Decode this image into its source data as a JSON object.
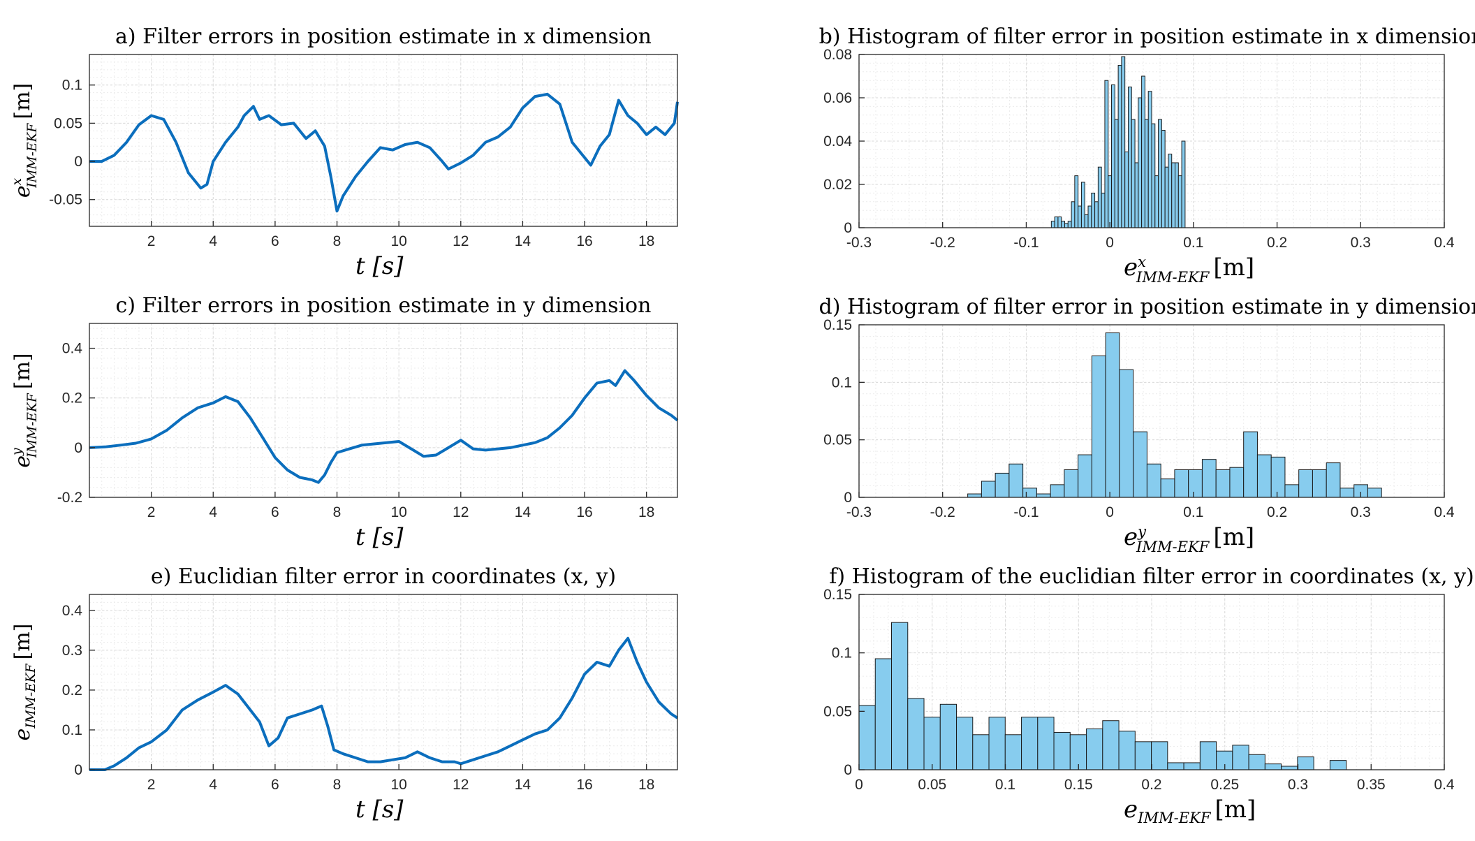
{
  "chart_data": [
    {
      "id": "a",
      "type": "line",
      "title": "a) Filter errors in position estimate in x dimension",
      "xlabel": "t [s]",
      "ylabel": "e^x_{IMM-EKF} [m]",
      "xlim": [
        0,
        19
      ],
      "ylim": [
        -0.085,
        0.14
      ],
      "xticks": [
        2,
        4,
        6,
        8,
        10,
        12,
        14,
        16,
        18
      ],
      "xtick_labels": [
        "2",
        "4",
        "6",
        "8",
        "10",
        "12",
        "14",
        "16",
        "18"
      ],
      "yticks": [
        -0.05,
        0,
        0.05,
        0.1
      ],
      "ytick_labels": [
        "-0.05",
        "0",
        "0.05",
        "0.1"
      ],
      "grid": true,
      "x": [
        0,
        0.4,
        0.8,
        1.2,
        1.6,
        2.0,
        2.4,
        2.8,
        3.2,
        3.6,
        3.8,
        4.0,
        4.4,
        4.8,
        5.0,
        5.3,
        5.5,
        5.8,
        6.2,
        6.6,
        7.0,
        7.3,
        7.6,
        7.8,
        8.0,
        8.2,
        8.6,
        9.0,
        9.4,
        9.8,
        10.2,
        10.6,
        11.0,
        11.4,
        11.6,
        12.0,
        12.4,
        12.8,
        13.2,
        13.6,
        14.0,
        14.4,
        14.8,
        15.2,
        15.6,
        16.0,
        16.2,
        16.5,
        16.8,
        17.1,
        17.4,
        17.7,
        18.0,
        18.3,
        18.6,
        18.9,
        19.0
      ],
      "y": [
        0,
        0,
        0.008,
        0.025,
        0.048,
        0.06,
        0.055,
        0.025,
        -0.015,
        -0.035,
        -0.03,
        0.0,
        0.025,
        0.045,
        0.06,
        0.072,
        0.055,
        0.06,
        0.048,
        0.05,
        0.03,
        0.04,
        0.02,
        -0.02,
        -0.065,
        -0.045,
        -0.02,
        0.0,
        0.018,
        0.015,
        0.022,
        0.025,
        0.018,
        0.0,
        -0.01,
        -0.002,
        0.008,
        0.025,
        0.032,
        0.045,
        0.07,
        0.085,
        0.088,
        0.075,
        0.025,
        0.005,
        -0.005,
        0.02,
        0.035,
        0.08,
        0.06,
        0.05,
        0.035,
        0.045,
        0.035,
        0.05,
        0.078
      ]
    },
    {
      "id": "b",
      "type": "bar",
      "title": "b) Histogram of filter error in position estimate in x dimension",
      "xlabel": "e^x_{IMM-EKF} [m]",
      "xlim": [
        -0.3,
        0.4
      ],
      "ylim": [
        0,
        0.08
      ],
      "xticks": [
        -0.3,
        -0.2,
        -0.1,
        0,
        0.1,
        0.2,
        0.3,
        0.4
      ],
      "xtick_labels": [
        "-0.3",
        "-0.2",
        "-0.1",
        "0",
        "0.1",
        "0.2",
        "0.3",
        "0.4"
      ],
      "yticks": [
        0,
        0.02,
        0.04,
        0.06,
        0.08
      ],
      "ytick_labels": [
        "0",
        "0.02",
        "0.04",
        "0.06",
        "0.08"
      ],
      "grid": true,
      "bin_start": -0.07,
      "bin_width": 0.004,
      "values": [
        0.003,
        0.005,
        0.005,
        0.003,
        0.002,
        0.003,
        0.012,
        0.024,
        0.01,
        0.021,
        0.006,
        0.01,
        0.016,
        0.012,
        0.028,
        0.016,
        0.068,
        0.024,
        0.066,
        0.05,
        0.075,
        0.079,
        0.035,
        0.065,
        0.05,
        0.03,
        0.06,
        0.07,
        0.05,
        0.063,
        0.048,
        0.024,
        0.05,
        0.045,
        0.028,
        0.034,
        0.03,
        0.03,
        0.024,
        0.04
      ]
    },
    {
      "id": "c",
      "type": "line",
      "title": "c) Filter errors in position estimate in y dimension",
      "xlabel": "t [s]",
      "ylabel": "e^y_{IMM-EKF} [m]",
      "xlim": [
        0,
        19
      ],
      "ylim": [
        -0.2,
        0.5
      ],
      "xticks": [
        2,
        4,
        6,
        8,
        10,
        12,
        14,
        16,
        18
      ],
      "xtick_labels": [
        "2",
        "4",
        "6",
        "8",
        "10",
        "12",
        "14",
        "16",
        "18"
      ],
      "yticks": [
        -0.2,
        0,
        0.2,
        0.4
      ],
      "ytick_labels": [
        "-0.2",
        "0",
        "0.2",
        "0.4"
      ],
      "grid": true,
      "x": [
        0,
        0.5,
        1.0,
        1.5,
        2.0,
        2.5,
        3.0,
        3.5,
        4.0,
        4.4,
        4.8,
        5.2,
        5.6,
        6.0,
        6.4,
        6.8,
        7.2,
        7.4,
        7.6,
        7.8,
        8.0,
        8.4,
        8.8,
        9.2,
        9.6,
        10.0,
        10.4,
        10.8,
        11.2,
        11.6,
        12.0,
        12.4,
        12.8,
        13.2,
        13.6,
        14.0,
        14.4,
        14.8,
        15.2,
        15.6,
        16.0,
        16.4,
        16.8,
        17.0,
        17.3,
        17.6,
        18.0,
        18.4,
        18.8,
        19.0
      ],
      "y": [
        0,
        0.003,
        0.01,
        0.018,
        0.035,
        0.07,
        0.12,
        0.16,
        0.18,
        0.205,
        0.185,
        0.12,
        0.04,
        -0.04,
        -0.09,
        -0.12,
        -0.13,
        -0.14,
        -0.11,
        -0.06,
        -0.02,
        -0.005,
        0.01,
        0.015,
        0.02,
        0.025,
        -0.005,
        -0.035,
        -0.03,
        0.0,
        0.03,
        -0.005,
        -0.01,
        -0.005,
        0.0,
        0.01,
        0.02,
        0.04,
        0.08,
        0.13,
        0.2,
        0.26,
        0.27,
        0.25,
        0.31,
        0.27,
        0.21,
        0.16,
        0.13,
        0.11
      ]
    },
    {
      "id": "d",
      "type": "bar",
      "title": "d) Histogram of filter error in position estimate in y dimension",
      "xlabel": "e^y_{IMM-EKF} [m]",
      "xlim": [
        -0.3,
        0.4
      ],
      "ylim": [
        0,
        0.15
      ],
      "xticks": [
        -0.3,
        -0.2,
        -0.1,
        0,
        0.1,
        0.2,
        0.3,
        0.4
      ],
      "xtick_labels": [
        "-0.3",
        "-0.2",
        "-0.1",
        "0",
        "0.1",
        "0.2",
        "0.3",
        "0.4"
      ],
      "yticks": [
        0,
        0.05,
        0.1,
        0.15
      ],
      "ytick_labels": [
        "0",
        "0.05",
        "0.1",
        "0.15"
      ],
      "grid": true,
      "bin_start": -0.17,
      "bin_width": 0.0165,
      "values": [
        0.003,
        0.014,
        0.021,
        0.029,
        0.008,
        0.003,
        0.011,
        0.024,
        0.037,
        0.123,
        0.143,
        0.111,
        0.057,
        0.029,
        0.016,
        0.024,
        0.024,
        0.033,
        0.024,
        0.026,
        0.057,
        0.037,
        0.035,
        0.011,
        0.024,
        0.024,
        0.03,
        0.008,
        0.011,
        0.008
      ]
    },
    {
      "id": "e",
      "type": "line",
      "title": "e) Euclidian filter error in coordinates (x, y)",
      "xlabel": "t [s]",
      "ylabel": "e_{IMM-EKF} [m]",
      "xlim": [
        0,
        19
      ],
      "ylim": [
        0,
        0.44
      ],
      "xticks": [
        2,
        4,
        6,
        8,
        10,
        12,
        14,
        16,
        18
      ],
      "xtick_labels": [
        "2",
        "4",
        "6",
        "8",
        "10",
        "12",
        "14",
        "16",
        "18"
      ],
      "yticks": [
        0,
        0.1,
        0.2,
        0.3,
        0.4
      ],
      "ytick_labels": [
        "0",
        "0.1",
        "0.2",
        "0.3",
        "0.4"
      ],
      "grid": true,
      "x": [
        0,
        0.5,
        0.8,
        1.2,
        1.6,
        2.0,
        2.5,
        3.0,
        3.5,
        4.0,
        4.4,
        4.8,
        5.2,
        5.5,
        5.8,
        6.1,
        6.4,
        6.8,
        7.2,
        7.5,
        7.7,
        7.9,
        8.2,
        8.6,
        9.0,
        9.4,
        9.8,
        10.2,
        10.6,
        11.0,
        11.4,
        11.8,
        12.0,
        12.4,
        12.8,
        13.2,
        13.6,
        14.0,
        14.4,
        14.8,
        15.2,
        15.6,
        16.0,
        16.4,
        16.8,
        17.1,
        17.4,
        17.7,
        18.0,
        18.4,
        18.8,
        19.0
      ],
      "y": [
        0,
        0.0,
        0.01,
        0.03,
        0.055,
        0.07,
        0.1,
        0.15,
        0.175,
        0.195,
        0.212,
        0.19,
        0.15,
        0.12,
        0.06,
        0.08,
        0.13,
        0.14,
        0.15,
        0.16,
        0.11,
        0.05,
        0.04,
        0.03,
        0.02,
        0.02,
        0.025,
        0.03,
        0.045,
        0.03,
        0.02,
        0.02,
        0.015,
        0.025,
        0.035,
        0.045,
        0.06,
        0.075,
        0.09,
        0.1,
        0.13,
        0.18,
        0.24,
        0.27,
        0.26,
        0.3,
        0.33,
        0.27,
        0.22,
        0.17,
        0.14,
        0.13
      ]
    },
    {
      "id": "f",
      "type": "bar",
      "title": "f) Histogram of the euclidian filter error in coordinates (x, y)",
      "xlabel": "e_{IMM-EKF} [m]",
      "xlim": [
        0,
        0.4
      ],
      "ylim": [
        0,
        0.15
      ],
      "xticks": [
        0,
        0.05,
        0.1,
        0.15,
        0.2,
        0.25,
        0.3,
        0.35,
        0.4
      ],
      "xtick_labels": [
        "0",
        "0.05",
        "0.1",
        "0.15",
        "0.2",
        "0.25",
        "0.3",
        "0.35",
        "0.4"
      ],
      "yticks": [
        0,
        0.05,
        0.1,
        0.15
      ],
      "ytick_labels": [
        "0",
        "0.05",
        "0.1",
        "0.15"
      ],
      "grid": true,
      "bin_start": 0,
      "bin_width": 0.0111,
      "values": [
        0.055,
        0.095,
        0.126,
        0.061,
        0.045,
        0.056,
        0.045,
        0.03,
        0.045,
        0.03,
        0.045,
        0.045,
        0.032,
        0.03,
        0.035,
        0.042,
        0.033,
        0.024,
        0.024,
        0.006,
        0.006,
        0.024,
        0.016,
        0.021,
        0.013,
        0.005,
        0.003,
        0.011,
        0.0,
        0.008
      ]
    }
  ]
}
